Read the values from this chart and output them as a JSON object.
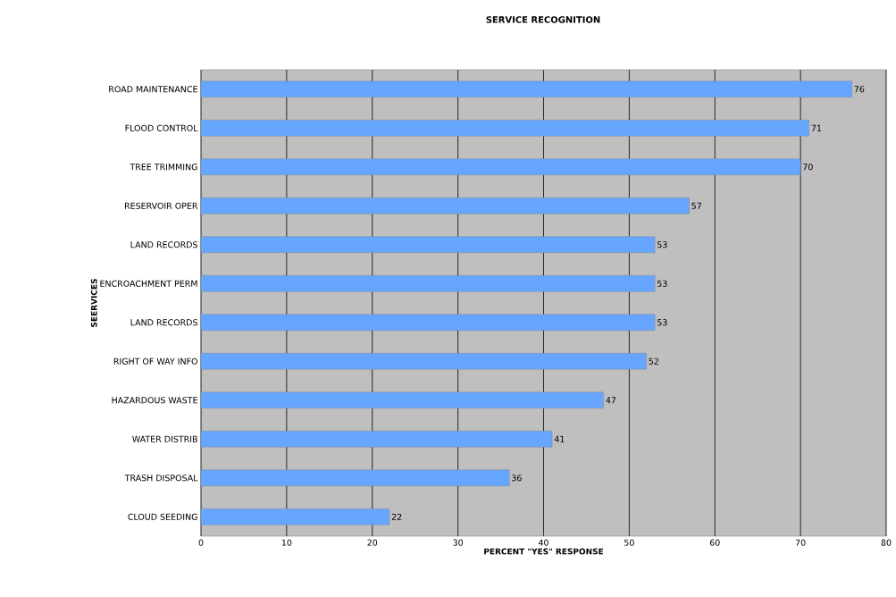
{
  "chart_data": {
    "type": "bar",
    "orientation": "horizontal",
    "title": "SERVICE RECOGNITION",
    "xlabel": "PERCENT \"YES\" RESPONSE",
    "ylabel": "SEERVICES",
    "categories": [
      "ROAD MAINTENANCE",
      "FLOOD CONTROL",
      "TREE TRIMMING",
      "RESERVOIR OPER",
      "LAND RECORDS",
      "ENCROACHMENT PERM",
      "LAND RECORDS",
      "RIGHT OF WAY INFO",
      "HAZARDOUS WASTE",
      "WATER DISTRIB",
      "TRASH DISPOSAL",
      "CLOUD SEEDING"
    ],
    "values": [
      76,
      71,
      70,
      57,
      53,
      53,
      53,
      52,
      47,
      41,
      36,
      22
    ],
    "color": "#66a6ff",
    "data_labels": true,
    "xlim": [
      0,
      80
    ],
    "xticks": [
      0,
      10,
      20,
      30,
      40,
      50,
      60,
      70,
      80
    ],
    "grid": "x"
  }
}
